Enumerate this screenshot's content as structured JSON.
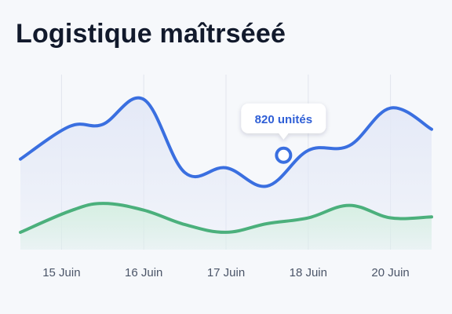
{
  "title": "Logistique maîtrséeé",
  "chart_data": {
    "type": "area",
    "x": [
      0,
      0.6,
      1.0,
      1.5,
      2.0,
      2.5,
      3.0,
      3.5,
      4.0,
      4.5,
      5.0
    ],
    "categories": [
      "15 Juin",
      "16 Juin",
      "17 Juin",
      "18 Juin",
      "20 Juin"
    ],
    "category_positions": [
      0.5,
      1.5,
      2.5,
      3.5,
      4.5
    ],
    "series": [
      {
        "values": [
          850,
          1020,
          1030,
          1160,
          780,
          805,
          710,
          895,
          920,
          1115,
          1005
        ],
        "color": "#3a6fe0",
        "fill": "#e4e9f7"
      },
      {
        "values": [
          470,
          580,
          620,
          585,
          510,
          470,
          515,
          545,
          610,
          545,
          550
        ],
        "color": "#4bb07c",
        "fill": "#d6efe2"
      }
    ],
    "tooltip": {
      "text": "820 unités",
      "x": 3.2,
      "y": 870
    },
    "ylim": [
      380,
      1350
    ],
    "grid": "vertical",
    "legend": "none"
  }
}
